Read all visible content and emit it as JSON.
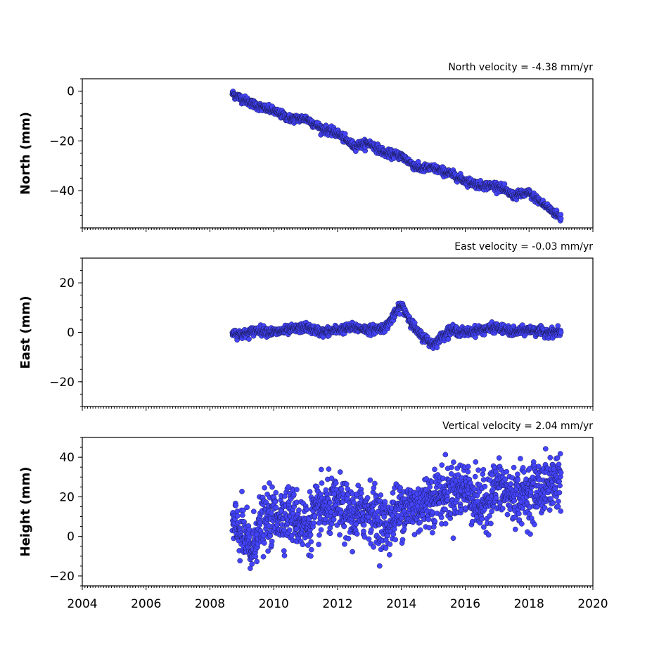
{
  "chart_data": [
    {
      "type": "scatter",
      "title": "North velocity = -4.38 mm/yr",
      "ylabel": "North (mm)",
      "xlim": [
        2004,
        2020
      ],
      "ylim": [
        -55,
        5
      ],
      "yticks": [
        0,
        -20,
        -40
      ],
      "yticklabels": [
        "0",
        "−20",
        "−40"
      ],
      "series": [
        {
          "color": "#4444ff",
          "x": [
            2008.7,
            2009.0,
            2009.5,
            2010.0,
            2010.5,
            2011.0,
            2011.5,
            2012.0,
            2012.5,
            2013.0,
            2013.5,
            2014.0,
            2014.5,
            2015.0,
            2015.5,
            2016.0,
            2016.5,
            2017.0,
            2017.5,
            2018.0,
            2018.5,
            2019.0
          ],
          "y": [
            -1,
            -3,
            -6,
            -8,
            -11,
            -11,
            -15,
            -17,
            -22,
            -21,
            -25,
            -26,
            -31,
            -31,
            -33,
            -36,
            -38,
            -38,
            -42,
            -41,
            -46,
            -51
          ]
        }
      ]
    },
    {
      "type": "scatter",
      "title": "East velocity = -0.03 mm/yr",
      "ylabel": "East (mm)",
      "xlim": [
        2004,
        2020
      ],
      "ylim": [
        -30,
        30
      ],
      "yticks": [
        20,
        0,
        -20
      ],
      "yticklabels": [
        "20",
        "0",
        "−20"
      ],
      "series": [
        {
          "color": "#4444ff",
          "x": [
            2008.7,
            2009.0,
            2009.5,
            2010.0,
            2010.5,
            2011.0,
            2011.5,
            2012.0,
            2012.5,
            2013.0,
            2013.5,
            2014.0,
            2014.5,
            2015.0,
            2015.5,
            2016.0,
            2016.5,
            2017.0,
            2017.5,
            2018.0,
            2018.5,
            2019.0
          ],
          "y": [
            0,
            -1,
            1,
            0,
            1,
            2,
            0,
            1,
            2,
            1,
            2,
            11,
            0,
            -5,
            1,
            0,
            1,
            2,
            0,
            1,
            0,
            0
          ]
        }
      ]
    },
    {
      "type": "scatter",
      "title": "Vertical velocity = 2.04 mm/yr",
      "ylabel": "Height (mm)",
      "xlabel": "",
      "xlim": [
        2004,
        2020
      ],
      "ylim": [
        -25,
        50
      ],
      "yticks": [
        40,
        20,
        0,
        -20
      ],
      "yticklabels": [
        "40",
        "20",
        "0",
        "−20"
      ],
      "xticks": [
        2004,
        2006,
        2008,
        2010,
        2012,
        2014,
        2016,
        2018,
        2020
      ],
      "xticklabels": [
        "2004",
        "2006",
        "2008",
        "2010",
        "2012",
        "2014",
        "2016",
        "2018",
        "2020"
      ],
      "series": [
        {
          "color": "#4444ff",
          "x": [
            2008.7,
            2009.0,
            2009.3,
            2009.5,
            2010.0,
            2010.5,
            2011.0,
            2011.5,
            2012.0,
            2012.5,
            2013.0,
            2013.5,
            2014.0,
            2014.5,
            2015.0,
            2015.5,
            2016.0,
            2016.5,
            2017.0,
            2017.5,
            2018.0,
            2018.5,
            2019.0
          ],
          "y": [
            5,
            2,
            -8,
            5,
            10,
            12,
            5,
            14,
            15,
            10,
            14,
            5,
            15,
            14,
            20,
            22,
            25,
            15,
            25,
            20,
            22,
            25,
            30
          ]
        }
      ]
    }
  ]
}
